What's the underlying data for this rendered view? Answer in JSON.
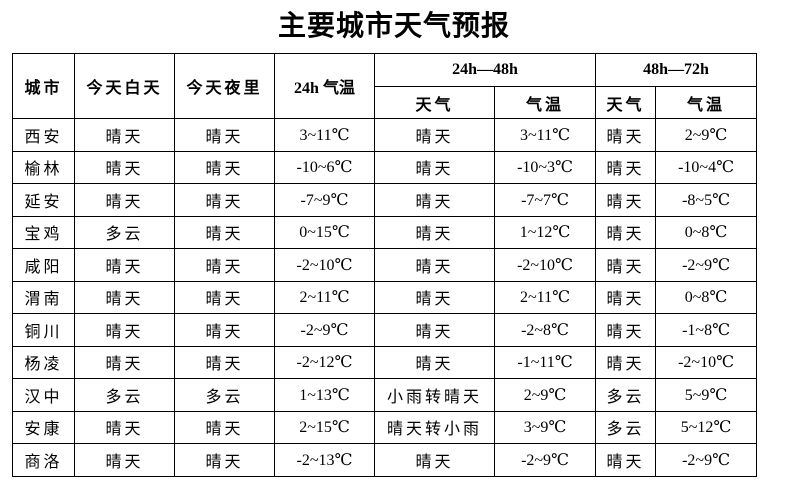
{
  "title": "主要城市天气预报",
  "table": {
    "header": {
      "city": "城市",
      "today_day": "今天白天",
      "today_night": "今天夜里",
      "temp_24h": "24h 气温",
      "range_24_48": "24h—48h",
      "range_48_72": "48h—72h",
      "weather": "天气",
      "temp": "气温"
    },
    "rows": [
      {
        "city": "西安",
        "today_day": "晴天",
        "today_night": "晴天",
        "temp_24h": "3~11℃",
        "weather_24_48": "晴天",
        "temp_24_48": "3~11℃",
        "weather_48_72": "晴天",
        "temp_48_72": "2~9℃"
      },
      {
        "city": "榆林",
        "today_day": "晴天",
        "today_night": "晴天",
        "temp_24h": "-10~6℃",
        "weather_24_48": "晴天",
        "temp_24_48": "-10~3℃",
        "weather_48_72": "晴天",
        "temp_48_72": "-10~4℃"
      },
      {
        "city": "延安",
        "today_day": "晴天",
        "today_night": "晴天",
        "temp_24h": "-7~9℃",
        "weather_24_48": "晴天",
        "temp_24_48": "-7~7℃",
        "weather_48_72": "晴天",
        "temp_48_72": "-8~5℃"
      },
      {
        "city": "宝鸡",
        "today_day": "多云",
        "today_night": "晴天",
        "temp_24h": "0~15℃",
        "weather_24_48": "晴天",
        "temp_24_48": "1~12℃",
        "weather_48_72": "晴天",
        "temp_48_72": "0~8℃"
      },
      {
        "city": "咸阳",
        "today_day": "晴天",
        "today_night": "晴天",
        "temp_24h": "-2~10℃",
        "weather_24_48": "晴天",
        "temp_24_48": "-2~10℃",
        "weather_48_72": "晴天",
        "temp_48_72": "-2~9℃"
      },
      {
        "city": "渭南",
        "today_day": "晴天",
        "today_night": "晴天",
        "temp_24h": "2~11℃",
        "weather_24_48": "晴天",
        "temp_24_48": "2~11℃",
        "weather_48_72": "晴天",
        "temp_48_72": "0~8℃"
      },
      {
        "city": "铜川",
        "today_day": "晴天",
        "today_night": "晴天",
        "temp_24h": "-2~9℃",
        "weather_24_48": "晴天",
        "temp_24_48": "-2~8℃",
        "weather_48_72": "晴天",
        "temp_48_72": "-1~8℃"
      },
      {
        "city": "杨凌",
        "today_day": "晴天",
        "today_night": "晴天",
        "temp_24h": "-2~12℃",
        "weather_24_48": "晴天",
        "temp_24_48": "-1~11℃",
        "weather_48_72": "晴天",
        "temp_48_72": "-2~10℃"
      },
      {
        "city": "汉中",
        "today_day": "多云",
        "today_night": "多云",
        "temp_24h": "1~13℃",
        "weather_24_48": "小雨转晴天",
        "temp_24_48": "2~9℃",
        "weather_48_72": "多云",
        "temp_48_72": "5~9℃"
      },
      {
        "city": "安康",
        "today_day": "晴天",
        "today_night": "晴天",
        "temp_24h": "2~15℃",
        "weather_24_48": "晴天转小雨",
        "temp_24_48": "3~9℃",
        "weather_48_72": "多云",
        "temp_48_72": "5~12℃"
      },
      {
        "city": "商洛",
        "today_day": "晴天",
        "today_night": "晴天",
        "temp_24h": "-2~13℃",
        "weather_24_48": "晴天",
        "temp_24_48": "-2~9℃",
        "weather_48_72": "晴天",
        "temp_48_72": "-2~9℃"
      }
    ]
  }
}
